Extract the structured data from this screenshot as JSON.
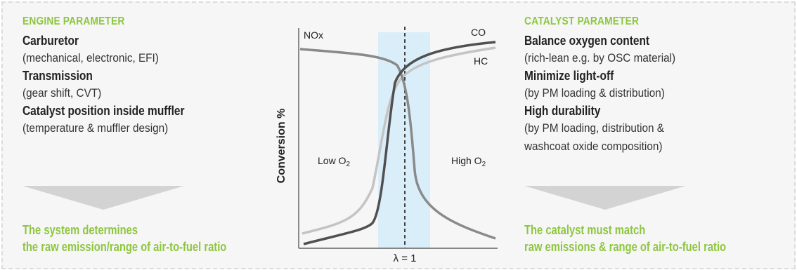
{
  "engine": {
    "heading": "ENGINE PARAMETER",
    "items": [
      {
        "title": "Carburetor",
        "desc": "(mechanical, electronic, EFI)"
      },
      {
        "title": "Transmission",
        "desc": "(gear shift, CVT)"
      },
      {
        "title": "Catalyst position inside muffler",
        "desc": "(temperature & muffler design)"
      }
    ],
    "conclusion_line1": "The system determines",
    "conclusion_line2": "the raw emission/range of air-to-fuel ratio"
  },
  "catalyst": {
    "heading": "CATALYST PARAMETER",
    "items": [
      {
        "title": "Balance oxygen content",
        "desc": [
          "(rich-lean e.g. by OSC material)"
        ]
      },
      {
        "title": "Minimize light-off",
        "desc": [
          "(by PM loading & distribution)"
        ]
      },
      {
        "title": "High durability",
        "desc": [
          "(by PM loading, distribution &",
          "washcoat oxide composition)"
        ]
      }
    ],
    "conclusion_line1": "The catalyst must match",
    "conclusion_line2": "raw emissions & range of air-to-fuel ratio"
  },
  "chart": {
    "ylabel": "Conversion %",
    "xlabel": "λ = 1",
    "low_label": "Low O",
    "low_sub": "2",
    "high_label": "High O",
    "high_sub": "2",
    "curve_labels": {
      "nox": "NOx",
      "co": "CO",
      "hc": "HC"
    },
    "colors": {
      "nox": "#8a8a8a",
      "co": "#505050",
      "hc": "#c4c4c4",
      "window": "#daeefa",
      "accent": "#8dc63f"
    }
  }
}
